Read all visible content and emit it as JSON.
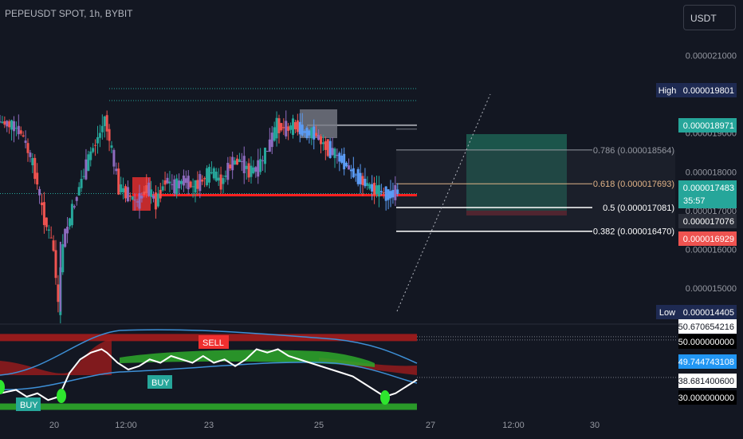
{
  "header": {
    "title": "PEPEUSDT SPOT, 1h, BYBIT",
    "currency_button": "USDT"
  },
  "colors": {
    "background": "#131722",
    "up": "#26a69a",
    "down": "#ef5350",
    "purple": "#8e6bbf",
    "blue": "#5b9cf6",
    "fib": "#d1d4dc",
    "fib618": "#e0b387",
    "tp_zone": "#1f6b5a",
    "sl_zone": "#7a2430",
    "signal_line": "#ffffff",
    "band_blue": "#3d8fd6",
    "band_green": "#2ea82a",
    "band_red": "#a51c1c"
  },
  "chart_data": [
    {
      "type": "candlestick",
      "title": "PEPEUSDT SPOT, 1h, BYBIT",
      "y_axis": {
        "ticks": [
          2.1e-05,
          2e-05,
          1.9e-05,
          1.8e-05,
          1.7e-05,
          1.6e-05,
          1.5e-05
        ],
        "tick_labels": [
          "0.000021000",
          "0.000020000",
          "0.000019000",
          "0.000018000",
          "0.000017000",
          "0.000016000",
          "0.000015000"
        ],
        "range": [
          1.41e-05,
          2.15e-05
        ]
      },
      "x_axis": {
        "tick_labels": [
          "20",
          "12:00",
          "23",
          "25",
          "27",
          "12:00",
          "30"
        ]
      },
      "price_series": [
        {
          "t": 0,
          "v": 1.93e-05
        },
        {
          "t": 3,
          "v": 1.92e-05
        },
        {
          "t": 5,
          "v": 1.9e-05
        },
        {
          "t": 6,
          "v": 1.87e-05
        },
        {
          "t": 8,
          "v": 1.8e-05
        },
        {
          "t": 9,
          "v": 1.73e-05
        },
        {
          "t": 10,
          "v": 1.68e-05
        },
        {
          "t": 12,
          "v": 1.6e-05
        },
        {
          "t": 13,
          "v": 1.45e-05
        },
        {
          "t": 14,
          "v": 1.62e-05
        },
        {
          "t": 16,
          "v": 1.7e-05
        },
        {
          "t": 18,
          "v": 1.78e-05
        },
        {
          "t": 20,
          "v": 1.85e-05
        },
        {
          "t": 22,
          "v": 1.9e-05
        },
        {
          "t": 23,
          "v": 1.94e-05
        },
        {
          "t": 24,
          "v": 1.88e-05
        },
        {
          "t": 25,
          "v": 1.82e-05
        },
        {
          "t": 26,
          "v": 1.76e-05
        },
        {
          "t": 28,
          "v": 1.74e-05
        },
        {
          "t": 30,
          "v": 1.72e-05
        },
        {
          "t": 32,
          "v": 1.76e-05
        },
        {
          "t": 34,
          "v": 1.72e-05
        },
        {
          "t": 36,
          "v": 1.78e-05
        },
        {
          "t": 38,
          "v": 1.76e-05
        },
        {
          "t": 40,
          "v": 1.78e-05
        },
        {
          "t": 42,
          "v": 1.76e-05
        },
        {
          "t": 44,
          "v": 1.78e-05
        },
        {
          "t": 46,
          "v": 1.8e-05
        },
        {
          "t": 48,
          "v": 1.77e-05
        },
        {
          "t": 50,
          "v": 1.82e-05
        },
        {
          "t": 52,
          "v": 1.83e-05
        },
        {
          "t": 54,
          "v": 1.8e-05
        },
        {
          "t": 56,
          "v": 1.81e-05
        },
        {
          "t": 58,
          "v": 1.86e-05
        },
        {
          "t": 60,
          "v": 1.92e-05
        },
        {
          "t": 62,
          "v": 1.91e-05
        },
        {
          "t": 64,
          "v": 1.92e-05
        },
        {
          "t": 66,
          "v": 1.9e-05
        },
        {
          "t": 68,
          "v": 1.9e-05
        },
        {
          "t": 70,
          "v": 1.87e-05
        },
        {
          "t": 72,
          "v": 1.85e-05
        },
        {
          "t": 74,
          "v": 1.83e-05
        },
        {
          "t": 76,
          "v": 1.8e-05
        },
        {
          "t": 78,
          "v": 1.78e-05
        },
        {
          "t": 80,
          "v": 1.76e-05
        },
        {
          "t": 82,
          "v": 1.75e-05
        },
        {
          "t": 84,
          "v": 1.74e-05
        },
        {
          "t": 86,
          "v": 1.75e-05
        }
      ],
      "levels": {
        "high": {
          "label": "High",
          "value": "0.000019801"
        },
        "low": {
          "label": "Low",
          "value": "0.000014405"
        }
      },
      "fib_levels": [
        {
          "label": "0.786 (0.000018564)",
          "value": 1.8564e-05
        },
        {
          "label": "0.618 (0.000017693)",
          "value": 1.7693e-05
        },
        {
          "label": "0.5 (0.000017081)",
          "value": 1.7081e-05
        },
        {
          "label": "0.382 (0.000016470)",
          "value": 1.647e-05
        }
      ],
      "price_tags": [
        {
          "value": "0.000018971",
          "color": "#26a69a"
        },
        {
          "value": "0.000017483",
          "sub": "35:57",
          "color": "#26a69a"
        },
        {
          "value": "0.000017076",
          "color": "#2a2e39"
        },
        {
          "value": "0.000016929",
          "color": "#ef5350"
        }
      ],
      "support_line": 1.74e-05,
      "position": {
        "entry": 1.7e-05,
        "target": 1.8971e-05,
        "stop": 1.6929e-05
      }
    },
    {
      "type": "line",
      "title": "",
      "y_axis": {
        "range": [
          29,
          53
        ]
      },
      "tags": [
        {
          "value": "50.670654216",
          "color": "#ffffff",
          "text_color": "#131722"
        },
        {
          "value": "50.000000000",
          "color": "#000000",
          "text_color": "#ffffff"
        },
        {
          "value": "49.744743108",
          "color": "#2196f3",
          "text_color": "#ffffff"
        },
        {
          "value": "38.681400600",
          "color": "#ffffff",
          "text_color": "#131722"
        },
        {
          "value": "30.000000000",
          "color": "#000000",
          "text_color": "#ffffff"
        }
      ],
      "signals": [
        {
          "label": "BUY",
          "t": 2,
          "color": "#26a69a"
        },
        {
          "label": "BUY",
          "t": 24,
          "color": "#26a69a"
        },
        {
          "label": "SELL",
          "t": 31,
          "color": "#ef2f2f"
        }
      ],
      "oscillator": [
        {
          "t": 0,
          "v": 34
        },
        {
          "t": 3,
          "v": 35
        },
        {
          "t": 5,
          "v": 33
        },
        {
          "t": 7,
          "v": 34
        },
        {
          "t": 9,
          "v": 32
        },
        {
          "t": 11,
          "v": 33
        },
        {
          "t": 13,
          "v": 40
        },
        {
          "t": 15,
          "v": 44
        },
        {
          "t": 17,
          "v": 46
        },
        {
          "t": 19,
          "v": 47
        },
        {
          "t": 20,
          "v": 46
        },
        {
          "t": 22,
          "v": 43
        },
        {
          "t": 24,
          "v": 41
        },
        {
          "t": 26,
          "v": 42
        },
        {
          "t": 28,
          "v": 44
        },
        {
          "t": 30,
          "v": 43
        },
        {
          "t": 32,
          "v": 45
        },
        {
          "t": 34,
          "v": 44
        },
        {
          "t": 36,
          "v": 43
        },
        {
          "t": 38,
          "v": 45
        },
        {
          "t": 40,
          "v": 43
        },
        {
          "t": 42,
          "v": 44
        },
        {
          "t": 44,
          "v": 42
        },
        {
          "t": 46,
          "v": 44
        },
        {
          "t": 48,
          "v": 47
        },
        {
          "t": 50,
          "v": 46
        },
        {
          "t": 52,
          "v": 47
        },
        {
          "t": 54,
          "v": 45
        },
        {
          "t": 56,
          "v": 44
        },
        {
          "t": 58,
          "v": 43
        },
        {
          "t": 60,
          "v": 42
        },
        {
          "t": 62,
          "v": 41
        },
        {
          "t": 64,
          "v": 40
        },
        {
          "t": 66,
          "v": 39
        },
        {
          "t": 68,
          "v": 37
        },
        {
          "t": 70,
          "v": 35
        },
        {
          "t": 72,
          "v": 33
        },
        {
          "t": 74,
          "v": 34
        },
        {
          "t": 76,
          "v": 36
        },
        {
          "t": 78,
          "v": 38
        }
      ]
    }
  ]
}
